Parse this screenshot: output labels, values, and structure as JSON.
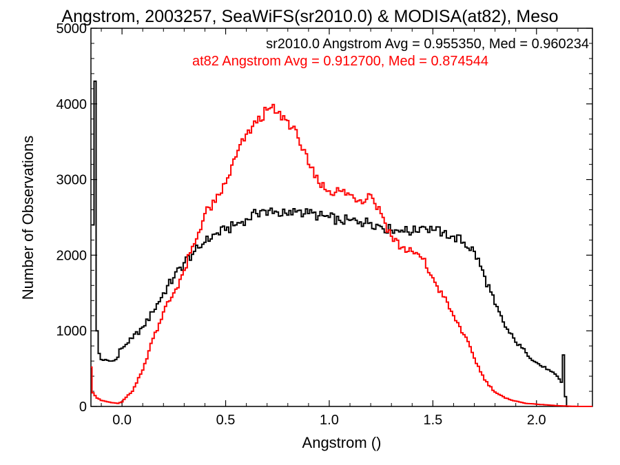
{
  "chart_data": {
    "type": "line",
    "title": "Angstrom, 2003257, SeaWiFS(sr2010.0) & MODISA(at82), Meso",
    "xlabel": "Angstrom ()",
    "ylabel": "Number of Observations",
    "xlim": [
      -0.15,
      2.27
    ],
    "ylim": [
      0,
      5000
    ],
    "x_ticks": [
      "0.0",
      "0.5",
      "1.0",
      "1.5",
      "2.0"
    ],
    "y_ticks": [
      "0",
      "1000",
      "2000",
      "3000",
      "4000",
      "5000"
    ],
    "grid": false,
    "annotations": [
      {
        "text": "sr2010.0 Angstrom Avg = 0.955350, Med = 0.960234",
        "color": "#000000"
      },
      {
        "text": "at82 Angstrom Avg = 0.912700, Med = 0.874544",
        "color": "#ff0000"
      }
    ],
    "series": [
      {
        "color": "#000000",
        "step": 0.01,
        "x": [
          -0.14,
          -0.13,
          -0.12,
          -0.11,
          -0.1,
          -0.09,
          -0.08,
          -0.07,
          -0.06,
          -0.05,
          -0.04,
          -0.03,
          -0.02,
          -0.01,
          0.0,
          0.01,
          0.02,
          0.03,
          0.05,
          0.1,
          0.15,
          0.2,
          0.25,
          0.3,
          0.35,
          0.4,
          0.45,
          0.5,
          0.55,
          0.6,
          0.65,
          0.68,
          0.7,
          0.72,
          0.75,
          0.8,
          0.85,
          0.9,
          0.95,
          1.0,
          1.05,
          1.1,
          1.15,
          1.2,
          1.25,
          1.3,
          1.35,
          1.4,
          1.45,
          1.5,
          1.55,
          1.6,
          1.65,
          1.7,
          1.75,
          1.8,
          1.85,
          1.9,
          1.95,
          2.0,
          2.05,
          2.1,
          2.12,
          2.13,
          2.14,
          2.15
        ],
        "y": [
          2400,
          4300,
          1000,
          700,
          620,
          610,
          620,
          610,
          600,
          600,
          605,
          620,
          650,
          760,
          770,
          790,
          820,
          840,
          900,
          1050,
          1250,
          1500,
          1700,
          1900,
          2050,
          2170,
          2280,
          2330,
          2400,
          2480,
          2550,
          2600,
          2530,
          2620,
          2570,
          2530,
          2590,
          2550,
          2520,
          2500,
          2460,
          2460,
          2440,
          2430,
          2380,
          2330,
          2330,
          2300,
          2380,
          2330,
          2300,
          2250,
          2170,
          2050,
          1720,
          1350,
          1050,
          850,
          710,
          580,
          490,
          400,
          320,
          680,
          130,
          0
        ]
      },
      {
        "color": "#ff0000",
        "step": 0.01,
        "x": [
          -0.15,
          -0.14,
          -0.12,
          -0.1,
          -0.05,
          -0.02,
          0.0,
          0.02,
          0.05,
          0.08,
          0.1,
          0.15,
          0.2,
          0.25,
          0.3,
          0.35,
          0.4,
          0.45,
          0.5,
          0.55,
          0.6,
          0.65,
          0.7,
          0.72,
          0.75,
          0.8,
          0.85,
          0.9,
          0.95,
          1.0,
          1.05,
          1.1,
          1.15,
          1.2,
          1.25,
          1.3,
          1.35,
          1.4,
          1.45,
          1.5,
          1.55,
          1.6,
          1.65,
          1.7,
          1.75,
          1.8,
          1.85,
          1.9,
          1.95,
          2.0,
          2.05,
          2.1,
          2.15,
          2.2,
          2.27
        ],
        "y": [
          520,
          180,
          110,
          80,
          50,
          40,
          60,
          120,
          200,
          380,
          480,
          900,
          1250,
          1500,
          1800,
          2150,
          2550,
          2700,
          2950,
          3300,
          3600,
          3750,
          3920,
          3950,
          3880,
          3780,
          3550,
          3200,
          2950,
          2850,
          2850,
          2800,
          2730,
          2800,
          2550,
          2250,
          2100,
          2050,
          1950,
          1700,
          1450,
          1200,
          950,
          640,
          350,
          190,
          110,
          70,
          40,
          30,
          20,
          10,
          5,
          0,
          0
        ]
      }
    ]
  }
}
